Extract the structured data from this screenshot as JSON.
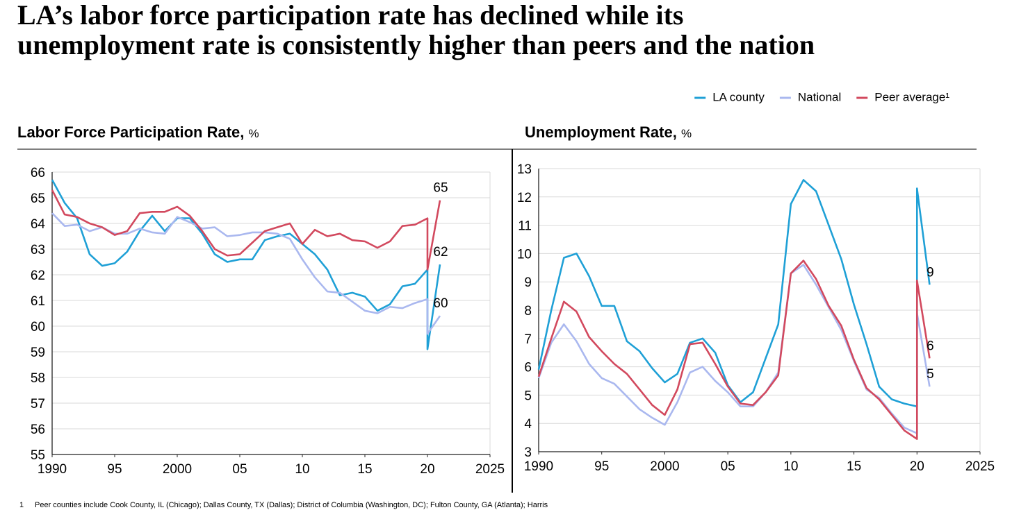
{
  "title": [
    "LA’s labor force participation rate has declined while its",
    "unemployment rate is consistently higher than peers and the nation"
  ],
  "footnote": {
    "marker": "1",
    "text": "Peer counties include Cook County, IL (Chicago); Dallas County, TX (Dallas); District of Columbia (Washington, DC); Fulton County, GA (Atlanta); Harris"
  },
  "chart_data": [
    {
      "type": "line",
      "title": "Labor Force Participation Rate,",
      "unit": "%",
      "legend": "top-right",
      "grid": true,
      "x": [
        1990,
        1991,
        1992,
        1993,
        1994,
        1995,
        1996,
        1997,
        1998,
        1999,
        2000,
        2001,
        2002,
        2003,
        2004,
        2005,
        2006,
        2007,
        2008,
        2009,
        2010,
        2011,
        2012,
        2013,
        2014,
        2015,
        2016,
        2017,
        2018,
        2019,
        2020,
        2020,
        2021
      ],
      "xlim": [
        1990,
        2025
      ],
      "xticks": [
        1990,
        {
          "value": 1995,
          "label": "95"
        },
        2000,
        {
          "value": 2005,
          "label": "05"
        },
        {
          "value": 2010,
          "label": "10"
        },
        {
          "value": 2015,
          "label": "15"
        },
        {
          "value": 2020,
          "label": "20"
        },
        2025
      ],
      "ylim": [
        55,
        66
      ],
      "yticks": [
        55,
        56,
        57,
        58,
        59,
        60,
        61,
        62,
        63,
        64,
        65,
        66
      ],
      "series": [
        {
          "name": "LA county",
          "color": "#1fa0d6",
          "end_label": "62",
          "values": [
            65.7,
            64.8,
            64.2,
            62.8,
            62.35,
            62.45,
            62.9,
            63.7,
            64.3,
            63.7,
            64.2,
            64.2,
            63.6,
            62.8,
            62.5,
            62.6,
            62.6,
            63.35,
            63.5,
            63.6,
            63.2,
            62.8,
            62.2,
            61.2,
            61.3,
            61.15,
            60.6,
            60.85,
            61.55,
            61.65,
            62.2,
            59.1,
            62.4
          ]
        },
        {
          "name": "National",
          "color": "#aab8ef",
          "end_label": "60",
          "values": [
            64.4,
            63.9,
            63.95,
            63.7,
            63.85,
            63.6,
            63.6,
            63.8,
            63.65,
            63.6,
            64.25,
            64.05,
            63.8,
            63.85,
            63.5,
            63.55,
            63.65,
            63.65,
            63.6,
            63.4,
            62.6,
            61.9,
            61.35,
            61.3,
            60.95,
            60.6,
            60.5,
            60.75,
            60.7,
            60.9,
            61.05,
            59.7,
            60.4
          ]
        },
        {
          "name": "Peer average¹",
          "color": "#d2495e",
          "end_label": "65",
          "values": [
            65.3,
            64.35,
            64.25,
            64.0,
            63.85,
            63.55,
            63.7,
            64.4,
            64.45,
            64.45,
            64.65,
            64.3,
            63.7,
            63.0,
            62.75,
            62.8,
            63.25,
            63.7,
            63.85,
            64.0,
            63.2,
            63.75,
            63.5,
            63.6,
            63.35,
            63.3,
            63.05,
            63.3,
            63.9,
            63.95,
            64.2,
            62.2,
            64.9
          ]
        }
      ]
    },
    {
      "type": "line",
      "title": "Unemployment Rate,",
      "unit": "%",
      "grid": true,
      "x": [
        1990,
        1991,
        1992,
        1993,
        1994,
        1995,
        1996,
        1997,
        1998,
        1999,
        2000,
        2001,
        2002,
        2003,
        2004,
        2005,
        2006,
        2007,
        2008,
        2009,
        2010,
        2011,
        2012,
        2013,
        2014,
        2015,
        2016,
        2017,
        2018,
        2019,
        2020,
        2020,
        2021
      ],
      "xlim": [
        1990,
        2025
      ],
      "xticks": [
        1990,
        {
          "value": 1995,
          "label": "95"
        },
        2000,
        {
          "value": 2005,
          "label": "05"
        },
        {
          "value": 2010,
          "label": "10"
        },
        {
          "value": 2015,
          "label": "15"
        },
        {
          "value": 2020,
          "label": "20"
        },
        2025
      ],
      "ylim": [
        3,
        13
      ],
      "yticks": [
        3,
        4,
        5,
        6,
        7,
        8,
        9,
        10,
        11,
        12,
        13
      ],
      "series": [
        {
          "color": "#1fa0d6",
          "end_label": "9",
          "values": [
            5.9,
            8.0,
            9.85,
            10.0,
            9.2,
            8.15,
            8.15,
            6.9,
            6.55,
            5.95,
            5.45,
            5.75,
            6.85,
            7.0,
            6.5,
            5.35,
            4.75,
            5.1,
            6.3,
            7.5,
            11.75,
            12.6,
            12.2,
            11.0,
            9.8,
            8.2,
            6.8,
            5.3,
            4.85,
            4.7,
            4.6,
            12.3,
            8.9
          ]
        },
        {
          "color": "#aab8ef",
          "end_label": "5",
          "values": [
            5.6,
            6.85,
            7.5,
            6.9,
            6.1,
            5.6,
            5.4,
            4.95,
            4.5,
            4.2,
            3.95,
            4.75,
            5.8,
            6.0,
            5.5,
            5.1,
            4.6,
            4.6,
            5.1,
            5.8,
            9.3,
            9.6,
            8.9,
            8.1,
            7.3,
            6.2,
            5.2,
            4.9,
            4.35,
            3.85,
            3.65,
            7.9,
            5.3
          ]
        },
        {
          "color": "#d2495e",
          "end_label": "6",
          "values": [
            5.65,
            7.0,
            8.3,
            7.95,
            7.05,
            6.55,
            6.1,
            5.75,
            5.2,
            4.65,
            4.3,
            5.2,
            6.8,
            6.85,
            6.1,
            5.3,
            4.7,
            4.65,
            5.1,
            5.7,
            9.3,
            9.75,
            9.1,
            8.15,
            7.45,
            6.25,
            5.25,
            4.85,
            4.3,
            3.75,
            3.45,
            9.05,
            6.3
          ]
        }
      ]
    }
  ]
}
